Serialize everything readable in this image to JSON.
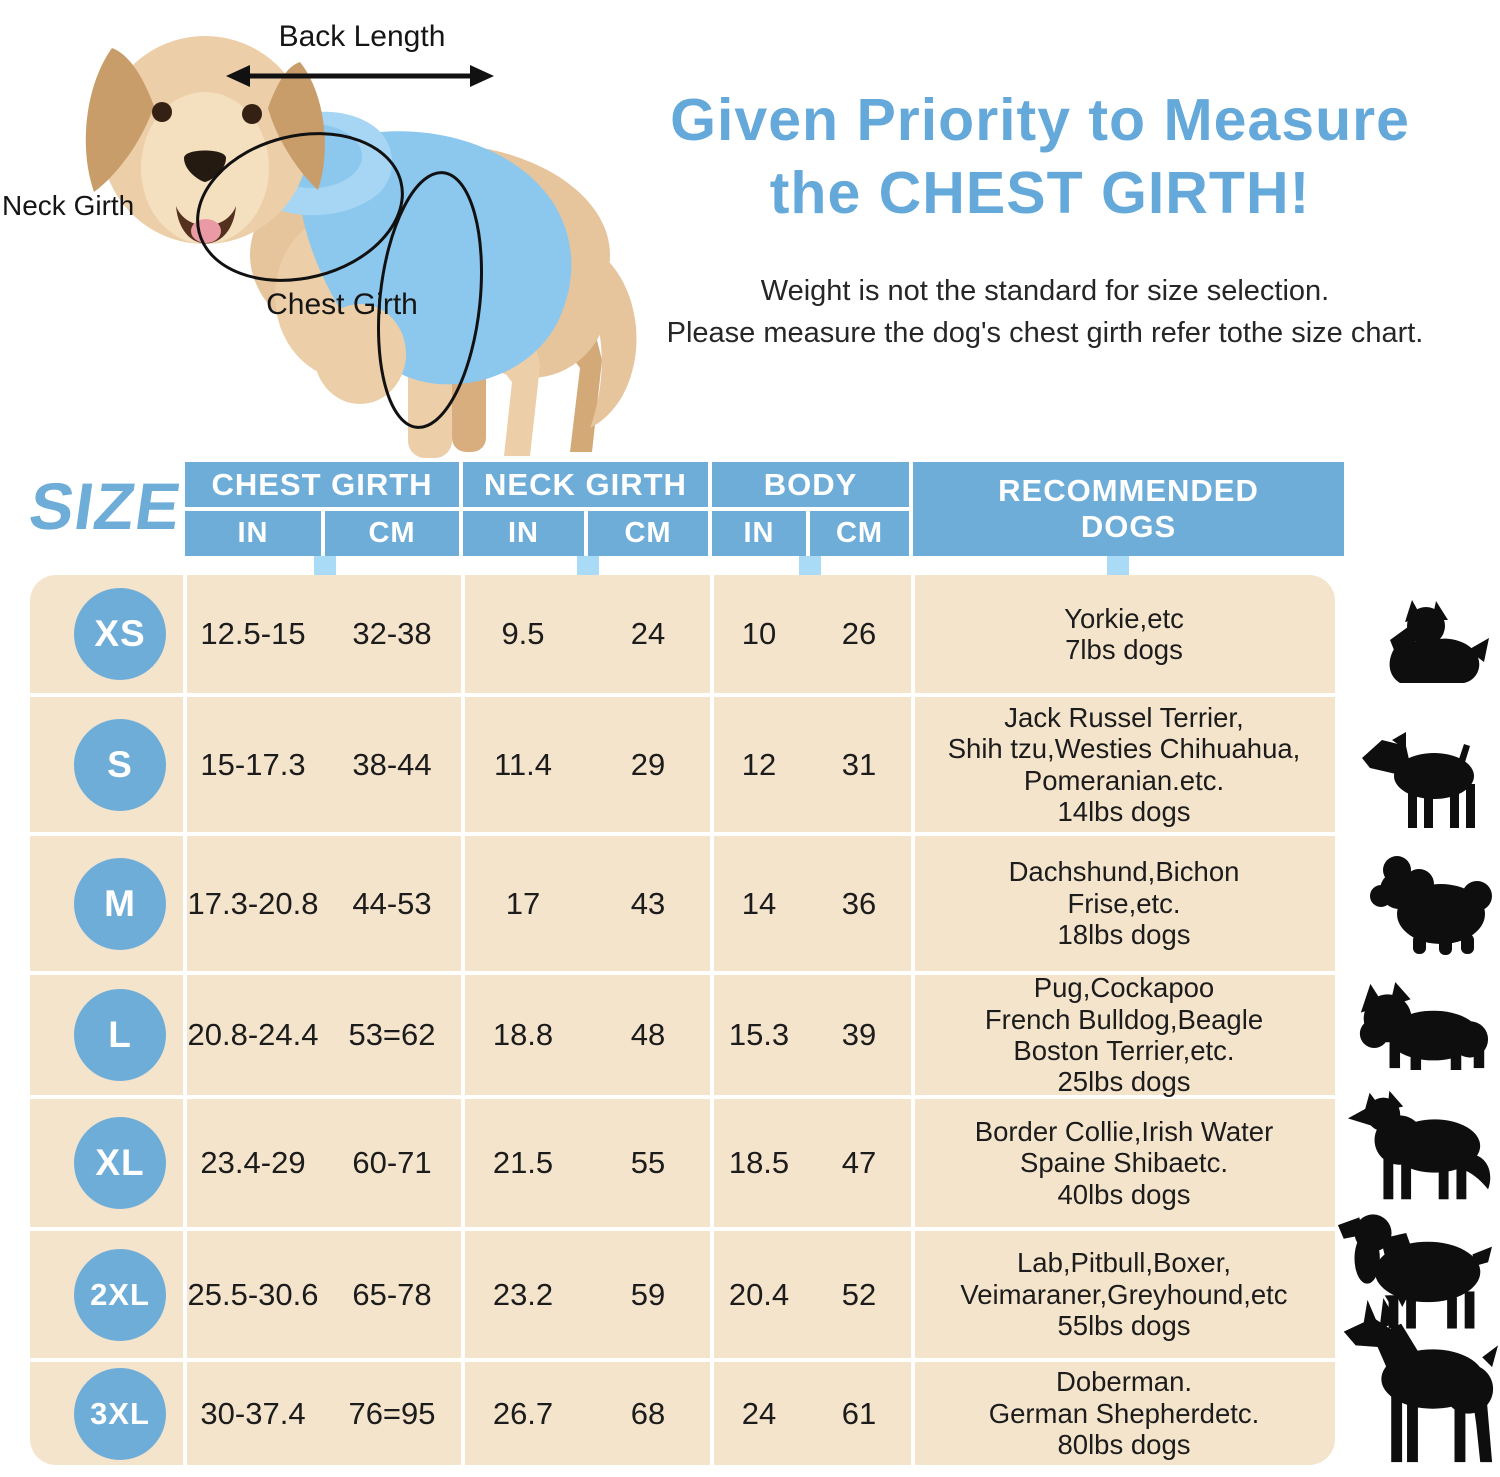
{
  "colors": {
    "header_blue": "#6fadd9",
    "tab_blue": "#a9dbf7",
    "row_tan": "#f4e4cc",
    "title_blue": "#64a9d9",
    "text_dark": "#1c1c1c",
    "silhouette_black": "#0e0e0e",
    "vest_blue": "#8cc7ee",
    "dog_coat_tan": "#e6c49c"
  },
  "diagram": {
    "back_length_label": "Back Length",
    "neck_girth_label": "Neck Girth",
    "chest_girth_label": "Chest Girth"
  },
  "heading": {
    "line1": "Given Priority to Measure",
    "line2": "the CHEST GIRTH!",
    "sub1": "Weight is not the standard for size selection.",
    "sub2": "Please measure the dog's chest girth refer tothe size chart."
  },
  "table": {
    "size_label": "SIZE",
    "col_groups": [
      {
        "label": "CHEST GIRTH",
        "units": [
          "IN",
          "CM"
        ]
      },
      {
        "label": "NECK GIRTH",
        "units": [
          "IN",
          "CM"
        ]
      },
      {
        "label": "BODY",
        "units": [
          "IN",
          "CM"
        ]
      },
      {
        "label_lines": [
          "RECOMMENDED",
          "DOGS"
        ]
      }
    ],
    "rows": [
      {
        "size": "XS",
        "chest_in": "12.5-15",
        "chest_cm": "32-38",
        "neck_in": "9.5",
        "neck_cm": "24",
        "body_in": "10",
        "body_cm": "26",
        "dogs": [
          "Yorkie,etc",
          "7lbs dogs"
        ],
        "breed_icon": "yorkie"
      },
      {
        "size": "S",
        "chest_in": "15-17.3",
        "chest_cm": "38-44",
        "neck_in": "11.4",
        "neck_cm": "29",
        "body_in": "12",
        "body_cm": "31",
        "dogs": [
          "Jack Russel Terrier,",
          "Shih tzu,Westies Chihuahua,",
          "Pomeranian.etc.",
          "14lbs dogs"
        ],
        "breed_icon": "jack-russell"
      },
      {
        "size": "M",
        "chest_in": "17.3-20.8",
        "chest_cm": "44-53",
        "neck_in": "17",
        "neck_cm": "43",
        "body_in": "14",
        "body_cm": "36",
        "dogs": [
          "Dachshund,Bichon",
          "Frise,etc.",
          "18lbs dogs"
        ],
        "breed_icon": "bichon"
      },
      {
        "size": "L",
        "chest_in": "20.8-24.4",
        "chest_cm": "53=62",
        "neck_in": "18.8",
        "neck_cm": "48",
        "body_in": "15.3",
        "body_cm": "39",
        "dogs": [
          "Pug,Cockapoo",
          "French Bulldog,Beagle",
          "Boston Terrier,etc.",
          "25lbs dogs"
        ],
        "breed_icon": "french-bulldog"
      },
      {
        "size": "XL",
        "chest_in": "23.4-29",
        "chest_cm": "60-71",
        "neck_in": "21.5",
        "neck_cm": "55",
        "body_in": "18.5",
        "body_cm": "47",
        "dogs": [
          "Border Collie,Irish Water",
          "Spaine Shibaetc.",
          "40lbs dogs"
        ],
        "breed_icon": "border-collie"
      },
      {
        "size": "2XL",
        "chest_in": "25.5-30.6",
        "chest_cm": "65-78",
        "neck_in": "23.2",
        "neck_cm": "59",
        "body_in": "20.4",
        "body_cm": "52",
        "dogs": [
          "Lab,Pitbull,Boxer,",
          "Veimaraner,Greyhound,etc",
          "55lbs dogs"
        ],
        "breed_icon": "spaniel"
      },
      {
        "size": "3XL",
        "chest_in": "30-37.4",
        "chest_cm": "76=95",
        "neck_in": "26.7",
        "neck_cm": "68",
        "body_in": "24",
        "body_cm": "61",
        "dogs": [
          "Doberman.",
          "German Shepherdetc.",
          "80lbs dogs"
        ],
        "breed_icon": "doberman"
      }
    ]
  }
}
